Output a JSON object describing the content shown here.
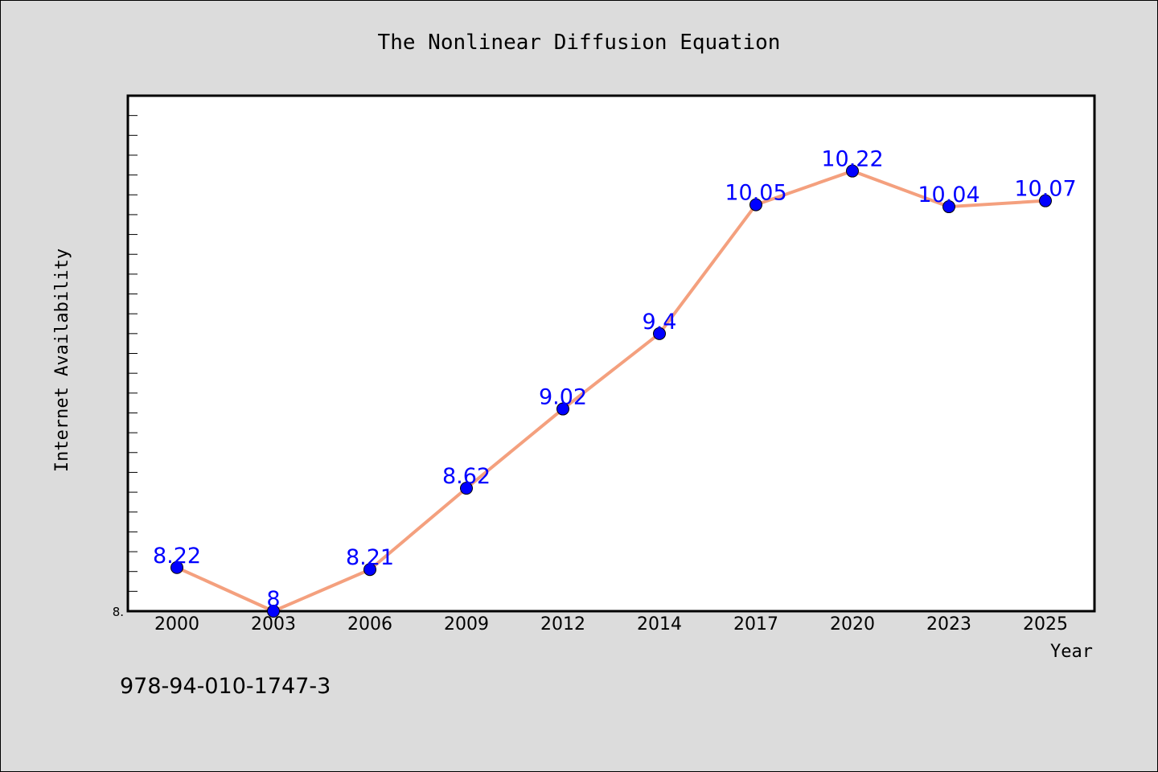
{
  "chart_data": {
    "type": "line",
    "title": "The Nonlinear Diffusion Equation",
    "xlabel": "Year",
    "ylabel": "Internet Availability",
    "categories": [
      "2000",
      "2003",
      "2006",
      "2009",
      "2012",
      "2014",
      "2017",
      "2020",
      "2023",
      "2025"
    ],
    "series": [
      {
        "values": [
          8.22,
          8,
          8.21,
          8.62,
          9.02,
          9.4,
          10.05,
          10.22,
          10.04,
          10.07
        ],
        "data_labels": [
          "8.22",
          "8",
          "8.21",
          "8.62",
          "9.02",
          "9.4",
          "10.05",
          "10.22",
          "10.04",
          "10.07"
        ]
      }
    ],
    "ylim": [
      8,
      10.6
    ],
    "ytick_label": "8.",
    "grid": false,
    "colors": {
      "line": "#f4a07e",
      "marker": "#0000ff",
      "label": "#0000ff",
      "plot_bg": "#ffffff",
      "page_bg": "#dcdcdc"
    }
  },
  "footer": {
    "isbn": "978-94-010-1747-3"
  }
}
